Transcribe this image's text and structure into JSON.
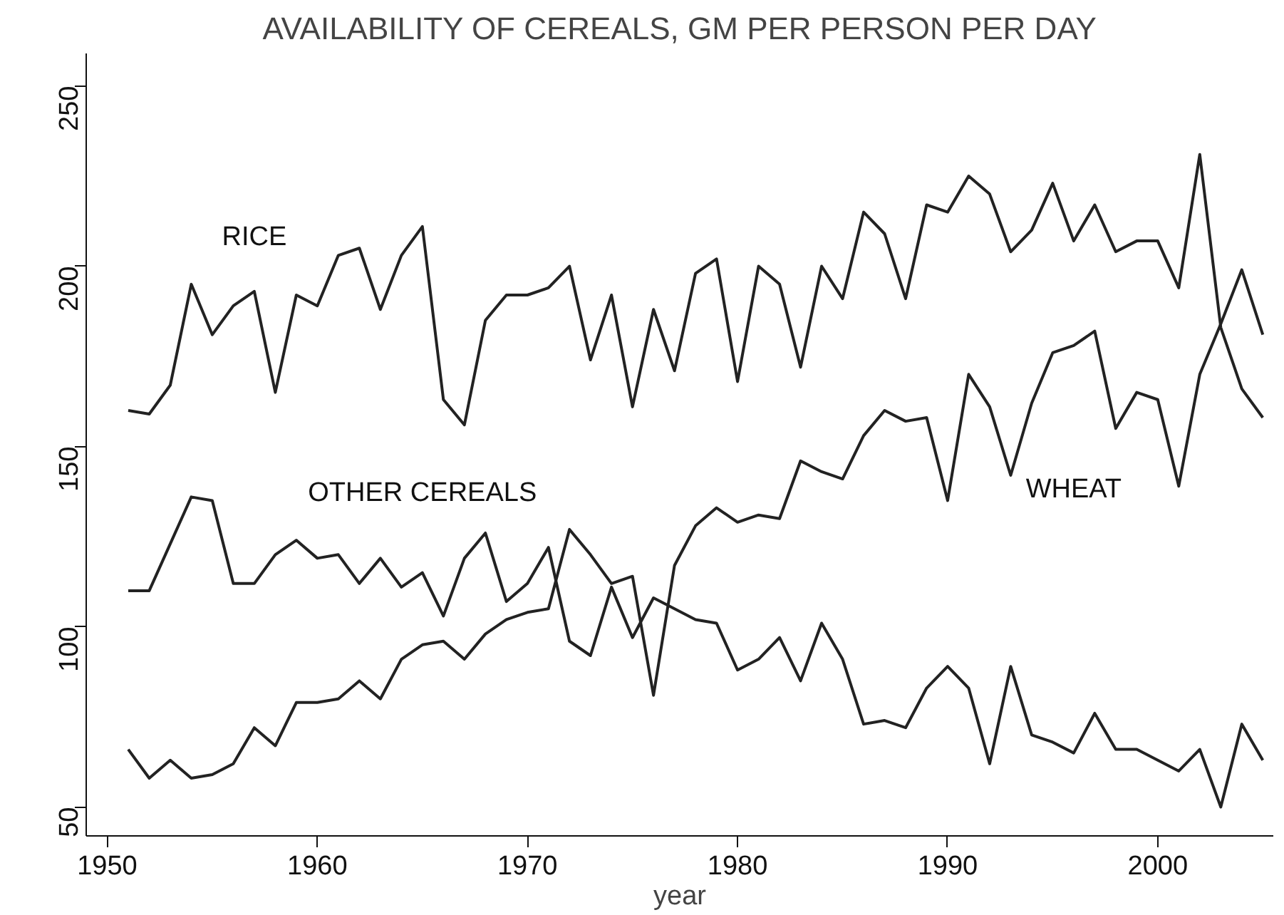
{
  "chart_data": {
    "type": "line",
    "title": "AVAILABILITY OF CEREALS, GM PER PERSON PER DAY",
    "xlabel": "year",
    "x": [
      1951,
      1952,
      1953,
      1954,
      1955,
      1956,
      1957,
      1958,
      1959,
      1960,
      1961,
      1962,
      1963,
      1964,
      1965,
      1966,
      1967,
      1968,
      1969,
      1970,
      1971,
      1972,
      1973,
      1974,
      1975,
      1976,
      1977,
      1978,
      1979,
      1980,
      1981,
      1982,
      1983,
      1984,
      1985,
      1986,
      1987,
      1988,
      1989,
      1990,
      1991,
      1992,
      1993,
      1994,
      1995,
      1996,
      1997,
      1998,
      1999,
      2000,
      2001,
      2002,
      2003,
      2004,
      2005
    ],
    "series": [
      {
        "name": "RICE",
        "color": "#222222",
        "values": [
          160,
          159,
          167,
          195,
          181,
          189,
          193,
          165,
          192,
          189,
          203,
          205,
          188,
          203,
          211,
          163,
          156,
          185,
          192,
          192,
          194,
          200,
          174,
          192,
          161,
          188,
          171,
          198,
          202,
          168,
          200,
          195,
          172,
          200,
          191,
          215,
          209,
          191,
          217,
          215,
          225,
          220,
          204,
          210,
          223,
          207,
          217,
          204,
          207,
          207,
          194,
          231,
          183,
          166,
          158
        ]
      },
      {
        "name": "OTHER CEREALS",
        "color": "#222222",
        "values": [
          110,
          110,
          123,
          136,
          135,
          112,
          112,
          120,
          124,
          119,
          120,
          112,
          119,
          111,
          115,
          103,
          119,
          126,
          107,
          112,
          122,
          96,
          92,
          111,
          97,
          108,
          105,
          102,
          101,
          88,
          91,
          97,
          85,
          101,
          91,
          73,
          74,
          72,
          83,
          89,
          83,
          62,
          89,
          70,
          68,
          65,
          76,
          66,
          66,
          63,
          60,
          66,
          50,
          73,
          63
        ]
      },
      {
        "name": "WHEAT",
        "color": "#222222",
        "values": [
          66,
          58,
          63,
          58,
          59,
          62,
          72,
          67,
          79,
          79,
          80,
          85,
          80,
          91,
          95,
          96,
          91,
          98,
          102,
          104,
          105,
          127,
          120,
          112,
          114,
          81,
          117,
          128,
          133,
          129,
          131,
          130,
          146,
          143,
          141,
          153,
          160,
          157,
          158,
          135,
          170,
          161,
          142,
          162,
          176,
          178,
          182,
          155,
          165,
          163,
          139,
          170,
          184,
          199,
          181
        ]
      }
    ],
    "xlim": [
      1949,
      2005.5
    ],
    "ylim": [
      42,
      259
    ],
    "xticks": [
      1950,
      1960,
      1970,
      1980,
      1990,
      2000
    ],
    "yticks": [
      50,
      100,
      150,
      200,
      250
    ],
    "grid": false,
    "line_style": "solid",
    "marker": "none"
  }
}
